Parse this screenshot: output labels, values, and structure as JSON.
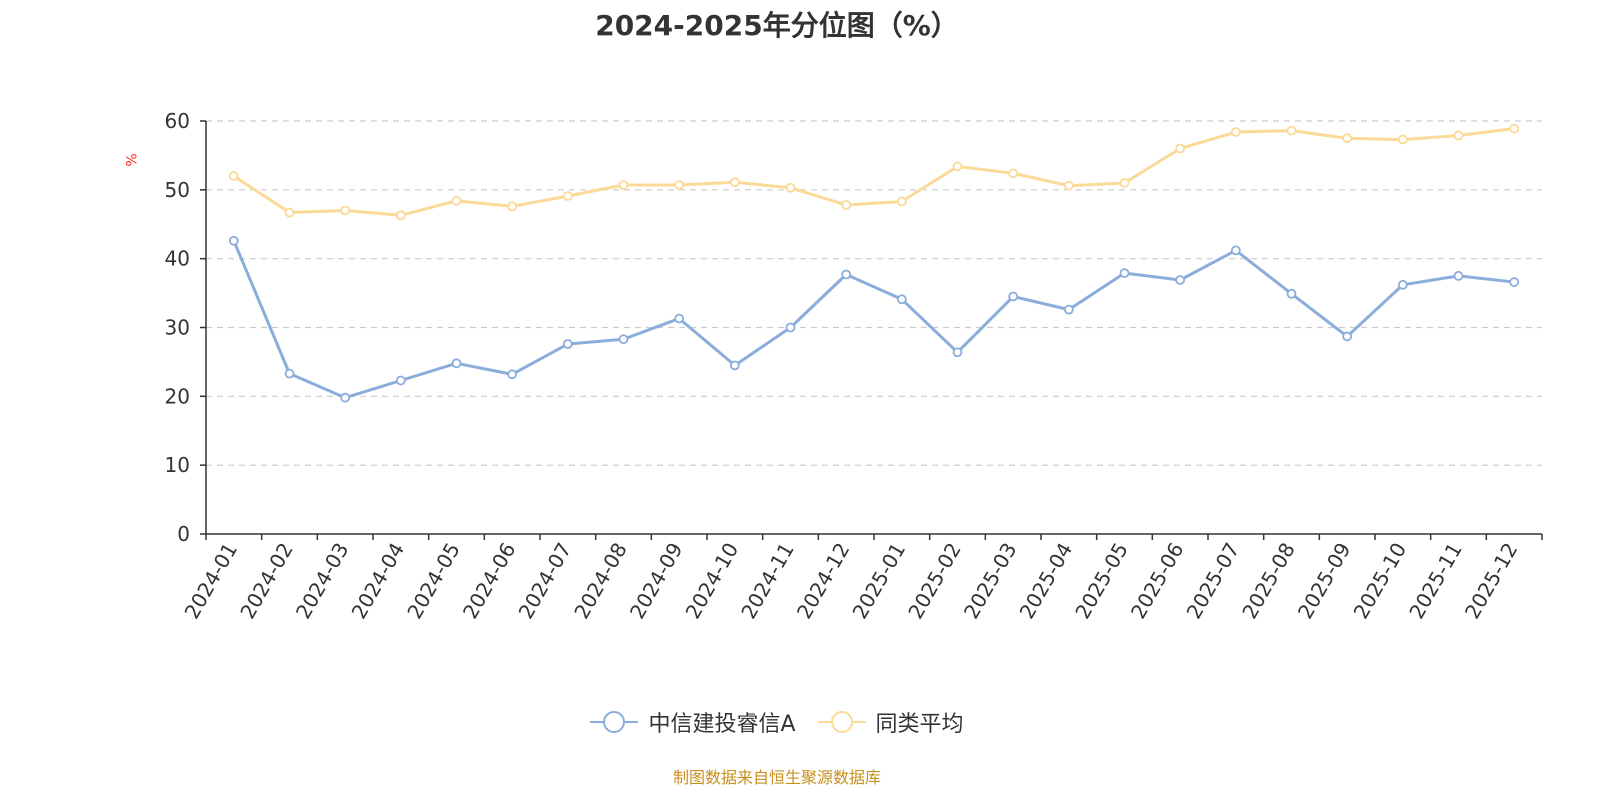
{
  "page": {
    "title": "2024-2025年分位图（%）",
    "ylabel": "%",
    "footer": "制图数据来自恒生聚源数据库"
  },
  "colors": {
    "series1": "#8aaddb",
    "series2": "#fbd996",
    "grid": "#cccccc",
    "axis": "#333333",
    "ylabel": "#ff2a2a",
    "footer": "#c8901e"
  },
  "chart_data": {
    "type": "line",
    "title": "2024-2025年分位图（%）",
    "xlabel": "",
    "ylabel": "%",
    "ylim": [
      0,
      60
    ],
    "yticks": [
      0,
      10,
      20,
      30,
      40,
      50,
      60
    ],
    "grid": true,
    "legend_position": "bottom-center",
    "categories": [
      "2024-01",
      "2024-02",
      "2024-03",
      "2024-04",
      "2024-05",
      "2024-06",
      "2024-07",
      "2024-08",
      "2024-09",
      "2024-10",
      "2024-11",
      "2024-12",
      "2025-01",
      "2025-02",
      "2025-03",
      "2025-04",
      "2025-05",
      "2025-06",
      "2025-07",
      "2025-08",
      "2025-09",
      "2025-10",
      "2025-11",
      "2025-12"
    ],
    "series": [
      {
        "name": "中信建投睿信A",
        "color": "#8aaddb",
        "values": [
          42.6,
          23.3,
          19.8,
          22.3,
          24.8,
          23.2,
          27.6,
          28.3,
          31.3,
          24.5,
          30.0,
          37.7,
          34.1,
          26.4,
          34.5,
          32.6,
          37.9,
          36.9,
          41.2,
          34.9,
          28.7,
          36.2,
          37.5,
          36.6
        ]
      },
      {
        "name": "同类平均",
        "color": "#fbd996",
        "values": [
          52.0,
          46.7,
          47.0,
          46.3,
          48.4,
          47.6,
          49.1,
          50.7,
          50.7,
          51.1,
          50.3,
          47.8,
          48.3,
          53.4,
          52.4,
          50.6,
          51.0,
          56.0,
          58.4,
          58.6,
          57.5,
          57.3,
          57.9,
          58.9
        ]
      }
    ]
  }
}
